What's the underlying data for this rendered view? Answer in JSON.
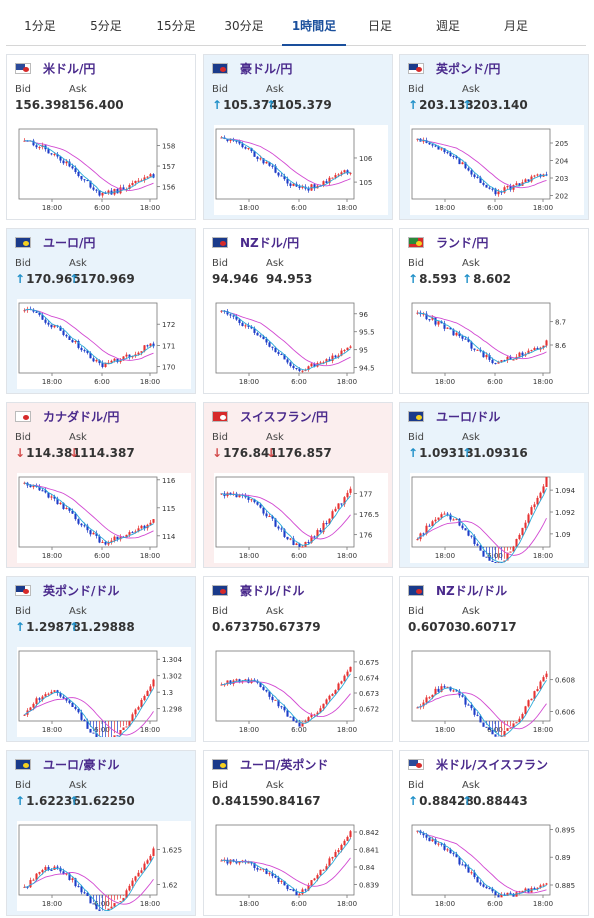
{
  "tabs": [
    {
      "label": "1分足",
      "active": false
    },
    {
      "label": "5分足",
      "active": false
    },
    {
      "label": "15分足",
      "active": false
    },
    {
      "label": "30分足",
      "active": false
    },
    {
      "label": "1時間足",
      "active": true
    },
    {
      "label": "日足",
      "active": false
    },
    {
      "label": "週足",
      "active": false
    },
    {
      "label": "月足",
      "active": false
    }
  ],
  "labels": {
    "bid": "Bid",
    "ask": "Ask"
  },
  "colors": {
    "up": "#1e8fc8",
    "down": "#d24a4a",
    "ma_slow": "#d24ad2",
    "ma_fast": "#2aaad8",
    "candle_up": "#e63232",
    "candle_down": "#1e3cc8"
  },
  "pairs": [
    {
      "name": "米ドル/円",
      "flag": "us-flag-icon",
      "bid": "156.398",
      "ask": "156.400",
      "direction": "none",
      "bg": "plain",
      "chart": {
        "ylim": [
          155.4,
          158.8
        ],
        "ticks": [
          {
            "v": 158,
            "t": "158"
          },
          {
            "v": 157,
            "t": "157"
          },
          {
            "v": 156,
            "t": "156"
          }
        ],
        "x_ticks": [
          "18:00",
          "6:00",
          "18:00"
        ],
        "start": 158.3,
        "end": 156.4,
        "low": 155.8,
        "bump": 0.4
      }
    },
    {
      "name": "豪ドル/円",
      "flag": "au-flag-icon",
      "bid": "105.374",
      "ask": "105.379",
      "direction": "up",
      "bg": "up",
      "chart": {
        "ylim": [
          104.3,
          107.2
        ],
        "ticks": [
          {
            "v": 106,
            "t": "106"
          },
          {
            "v": 105,
            "t": "105"
          }
        ],
        "x_ticks": [
          "18:00",
          "6:00",
          "18:00"
        ],
        "start": 106.9,
        "end": 105.37,
        "low": 104.8,
        "bump": 0.3
      }
    },
    {
      "name": "英ポンド/円",
      "flag": "gb-flag-icon",
      "bid": "203.133",
      "ask": "203.140",
      "direction": "up",
      "bg": "up",
      "chart": {
        "ylim": [
          201.8,
          205.8
        ],
        "ticks": [
          {
            "v": 205,
            "t": "205"
          },
          {
            "v": 204,
            "t": "204"
          },
          {
            "v": 203,
            "t": "203"
          },
          {
            "v": 202,
            "t": "202"
          }
        ],
        "x_ticks": [
          "18:00",
          "6:00",
          "18:00"
        ],
        "start": 205.3,
        "end": 203.13,
        "low": 202.4,
        "bump": 0.4
      }
    },
    {
      "name": "ユーロ/円",
      "flag": "eu-flag-icon",
      "bid": "170.965",
      "ask": "170.969",
      "direction": "up",
      "bg": "up",
      "chart": {
        "ylim": [
          169.7,
          173.0
        ],
        "ticks": [
          {
            "v": 172,
            "t": "172"
          },
          {
            "v": 171,
            "t": "171"
          },
          {
            "v": 170,
            "t": "170"
          }
        ],
        "x_ticks": [
          "18:00",
          "6:00",
          "18:00"
        ],
        "start": 172.7,
        "end": 170.97,
        "low": 170.2,
        "bump": 0.3
      }
    },
    {
      "name": "NZドル/円",
      "flag": "nz-flag-icon",
      "bid": "94.946",
      "ask": "94.953",
      "direction": "none",
      "bg": "plain",
      "chart": {
        "ylim": [
          94.35,
          96.3
        ],
        "ticks": [
          {
            "v": 96,
            "t": "96"
          },
          {
            "v": 95.5,
            "t": "95.5"
          },
          {
            "v": 95,
            "t": "95"
          },
          {
            "v": 94.5,
            "t": "94.5"
          }
        ],
        "x_ticks": [
          "18:00",
          "6:00",
          "18:00"
        ],
        "start": 96.1,
        "end": 94.95,
        "low": 94.5,
        "bump": 0.15
      }
    },
    {
      "name": "ランド/円",
      "flag": "za-flag-icon",
      "bid": "8.593",
      "ask": "8.602",
      "direction": "up",
      "bg": "plain",
      "chart": {
        "ylim": [
          8.48,
          8.78
        ],
        "ticks": [
          {
            "v": 8.7,
            "t": "8.7"
          },
          {
            "v": 8.6,
            "t": "8.6"
          }
        ],
        "x_ticks": [
          "18:00",
          "6:00",
          "18:00"
        ],
        "start": 8.74,
        "end": 8.6,
        "low": 8.53,
        "bump": 0.02
      }
    },
    {
      "name": "カナダドル/円",
      "flag": "ca-flag-icon",
      "bid": "114.381",
      "ask": "114.387",
      "direction": "down",
      "bg": "down",
      "chart": {
        "ylim": [
          113.6,
          116.1
        ],
        "ticks": [
          {
            "v": 116,
            "t": "116"
          },
          {
            "v": 115,
            "t": "115"
          },
          {
            "v": 114,
            "t": "114"
          }
        ],
        "x_ticks": [
          "18:00",
          "6:00",
          "18:00"
        ],
        "start": 115.9,
        "end": 114.38,
        "low": 113.9,
        "bump": 0.3
      }
    },
    {
      "name": "スイスフラン/円",
      "flag": "ch-flag-icon",
      "bid": "176.841",
      "ask": "176.857",
      "direction": "down",
      "bg": "down",
      "chart": {
        "ylim": [
          175.7,
          177.4
        ],
        "ticks": [
          {
            "v": 177,
            "t": "177"
          },
          {
            "v": 176.5,
            "t": "176.5"
          },
          {
            "v": 176,
            "t": "176"
          }
        ],
        "x_ticks": [
          "18:00",
          "6:00",
          "18:00"
        ],
        "start": 177.0,
        "end": 176.85,
        "low": 175.9,
        "bump": 0.5
      }
    },
    {
      "name": "ユーロ/ドル",
      "flag": "eu-flag-icon",
      "bid": "1.09313",
      "ask": "1.09316",
      "direction": "up",
      "bg": "up",
      "chart": {
        "ylim": [
          1.0888,
          1.0952
        ],
        "ticks": [
          {
            "v": 1.094,
            "t": "1.094"
          },
          {
            "v": 1.092,
            "t": "1.092"
          },
          {
            "v": 1.09,
            "t": "1.09"
          }
        ],
        "x_ticks": [
          "18:00",
          "6:00",
          "18:00"
        ],
        "start": 1.0895,
        "end": 1.0932,
        "low": 1.0892,
        "bump": 0.0045
      }
    },
    {
      "name": "英ポンド/ドル",
      "flag": "gb-flag-icon",
      "bid": "1.29878",
      "ask": "1.29888",
      "direction": "up",
      "bg": "up",
      "chart": {
        "ylim": [
          1.2965,
          1.305
        ],
        "ticks": [
          {
            "v": 1.304,
            "t": "1.304"
          },
          {
            "v": 1.302,
            "t": "1.302"
          },
          {
            "v": 1.3,
            "t": "1.3"
          },
          {
            "v": 1.298,
            "t": "1.298"
          }
        ],
        "x_ticks": [
          "18:00",
          "6:00",
          "18:00"
        ],
        "start": 1.2972,
        "end": 1.2988,
        "low": 1.2968,
        "bump": 0.006
      }
    },
    {
      "name": "豪ドル/ドル",
      "flag": "au-flag-icon",
      "bid": "0.67375",
      "ask": "0.67379",
      "direction": "none",
      "bg": "plain",
      "chart": {
        "ylim": [
          0.6712,
          0.6757
        ],
        "ticks": [
          {
            "v": 0.675,
            "t": "0.675"
          },
          {
            "v": 0.674,
            "t": "0.674"
          },
          {
            "v": 0.673,
            "t": "0.673"
          },
          {
            "v": 0.672,
            "t": "0.672"
          }
        ],
        "x_ticks": [
          "18:00",
          "6:00",
          "18:00"
        ],
        "start": 0.6735,
        "end": 0.6738,
        "low": 0.6718,
        "bump": 0.0018
      }
    },
    {
      "name": "NZドル/ドル",
      "flag": "nz-flag-icon",
      "bid": "0.60703",
      "ask": "0.60717",
      "direction": "none",
      "bg": "plain",
      "chart": {
        "ylim": [
          0.6054,
          0.6098
        ],
        "ticks": [
          {
            "v": 0.608,
            "t": "0.608"
          },
          {
            "v": 0.606,
            "t": "0.606"
          }
        ],
        "x_ticks": [
          "18:00",
          "6:00",
          "18:00"
        ],
        "start": 0.6062,
        "end": 0.6071,
        "low": 0.6058,
        "bump": 0.0028
      }
    },
    {
      "name": "ユーロ/豪ドル",
      "flag": "eu-flag-icon",
      "bid": "1.62236",
      "ask": "1.62250",
      "direction": "up",
      "bg": "up",
      "chart": {
        "ylim": [
          1.6185,
          1.6285
        ],
        "ticks": [
          {
            "v": 1.625,
            "t": "1.625"
          },
          {
            "v": 1.62,
            "t": "1.62"
          }
        ],
        "x_ticks": [
          "18:00",
          "6:00",
          "18:00"
        ],
        "start": 1.6195,
        "end": 1.6224,
        "low": 1.619,
        "bump": 0.006
      }
    },
    {
      "name": "ユーロ/英ポンド",
      "flag": "eu-flag-icon",
      "bid": "0.84159",
      "ask": "0.84167",
      "direction": "none",
      "bg": "plain",
      "chart": {
        "ylim": [
          0.8384,
          0.8424
        ],
        "ticks": [
          {
            "v": 0.842,
            "t": "0.842"
          },
          {
            "v": 0.841,
            "t": "0.841"
          },
          {
            "v": 0.84,
            "t": "0.84"
          },
          {
            "v": 0.839,
            "t": "0.839"
          }
        ],
        "x_ticks": [
          "18:00",
          "6:00",
          "18:00"
        ],
        "start": 0.8403,
        "end": 0.8416,
        "low": 0.8388,
        "bump": 0.0008
      }
    },
    {
      "name": "米ドル/スイスフラン",
      "flag": "us-flag-icon",
      "bid": "0.88428",
      "ask": "0.88443",
      "direction": "up",
      "bg": "plain",
      "chart": {
        "ylim": [
          0.8832,
          0.8958
        ],
        "ticks": [
          {
            "v": 0.895,
            "t": "0.895"
          },
          {
            "v": 0.89,
            "t": "0.89"
          },
          {
            "v": 0.885,
            "t": "0.885"
          }
        ],
        "x_ticks": [
          "18:00",
          "6:00",
          "18:00"
        ],
        "start": 0.8945,
        "end": 0.8843,
        "low": 0.8837,
        "bump": 0.0015
      }
    }
  ]
}
